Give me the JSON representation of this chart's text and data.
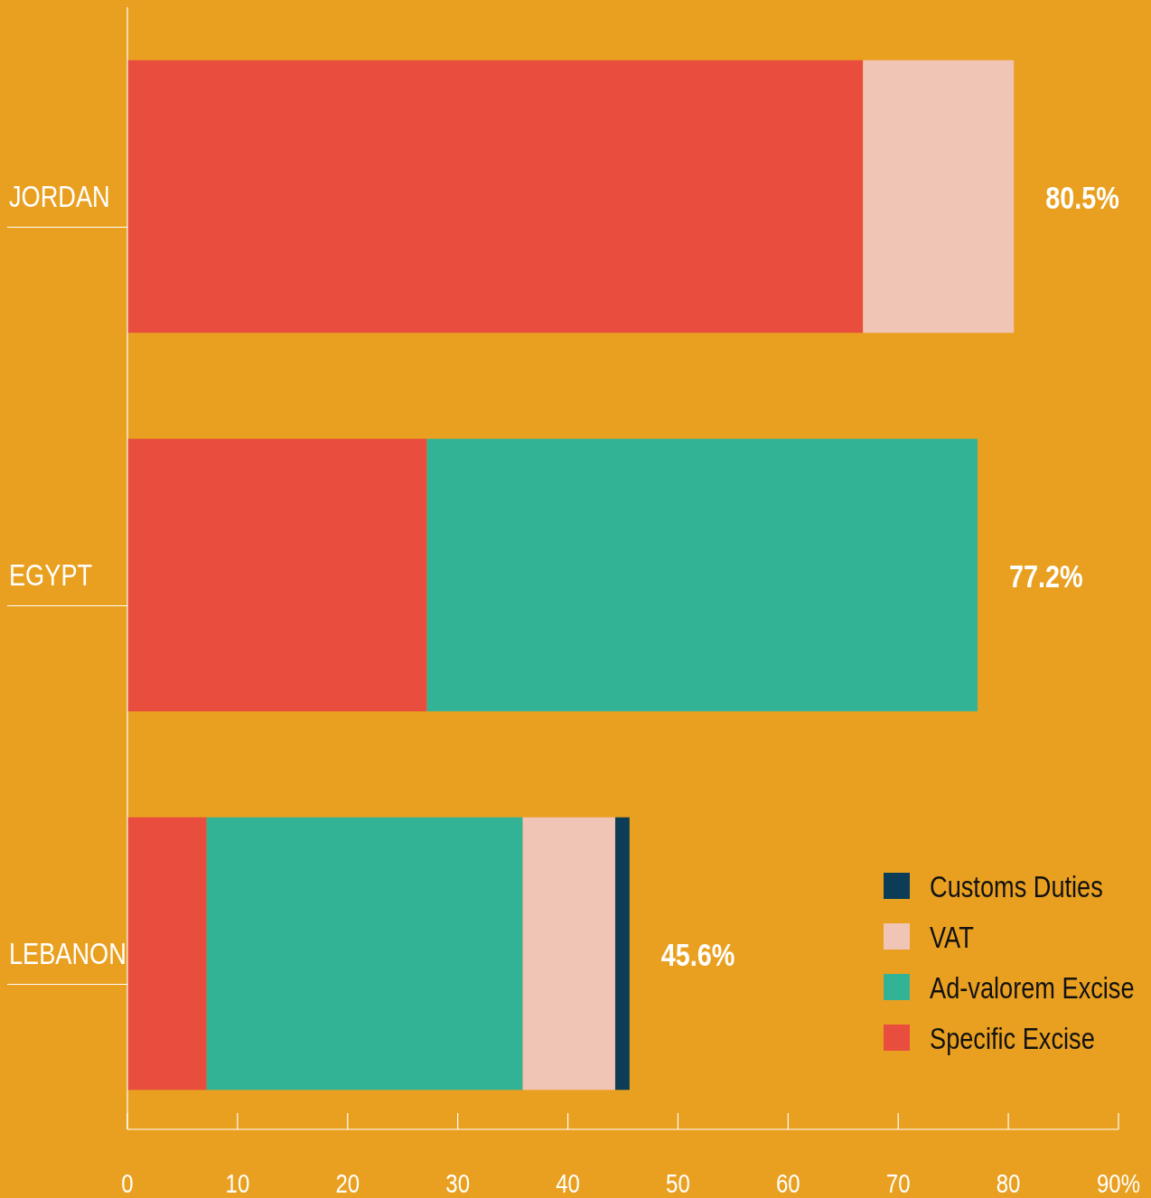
{
  "chart_data": {
    "type": "bar",
    "orientation": "horizontal",
    "stacked": true,
    "categories": [
      "JORDAN",
      "EGYPT",
      "LEBANON"
    ],
    "series": [
      {
        "name": "Specific Excise",
        "color": "#e84d3d",
        "values": [
          66.8,
          27.2,
          7.2
        ]
      },
      {
        "name": "Ad-valorem Excise",
        "color": "#33b396",
        "values": [
          null,
          50.0,
          28.7
        ]
      },
      {
        "name": "VAT",
        "color": "#f0c5b5",
        "values": [
          13.7,
          null,
          8.4
        ]
      },
      {
        "name": "Customs Duties",
        "color": "#0d3d56",
        "values": [
          null,
          null,
          1.3
        ]
      }
    ],
    "totals": [
      "80.5%",
      "77.2%",
      "45.6%"
    ],
    "xlim": [
      0,
      90
    ],
    "xticks": [
      0,
      10,
      20,
      30,
      40,
      50,
      60,
      70,
      80,
      {
        "value": 90,
        "label": "90%"
      }
    ],
    "legend": "bottom right",
    "grid": false
  }
}
